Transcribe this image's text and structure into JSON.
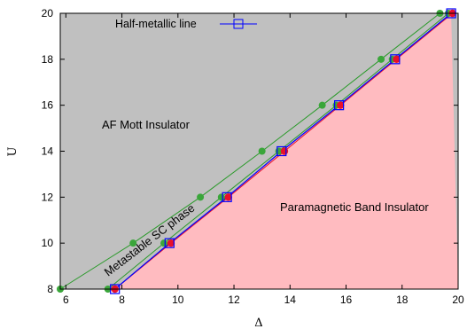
{
  "chart_data": {
    "type": "area",
    "xlabel": "Δ",
    "ylabel": "U",
    "xlim": [
      5.8,
      20
    ],
    "ylim": [
      8,
      20
    ],
    "xticks": [
      "6",
      "8",
      "10",
      "12",
      "14",
      "16",
      "18",
      "20"
    ],
    "yticks": [
      "8",
      "10",
      "12",
      "14",
      "16",
      "18",
      "20"
    ],
    "colors": {
      "af_region": "#c0c0c0",
      "pm_region": "#ffbbc0",
      "green_line": "#2a9a2a",
      "green_marker": "#3aa63a",
      "blue_line": "#0000ff",
      "red_marker": "#e8102a"
    },
    "annotations": {
      "af_mott": "AF Mott Insulator",
      "paramagnetic": "Paramagnetic Band Insulator",
      "metastable": "Metastable SC phase"
    },
    "legend": {
      "label": "Half-metallic line",
      "position": "top"
    },
    "series": [
      {
        "name": "Half-metallic line",
        "marker": "open-square",
        "x": [
          7.75,
          9.7,
          11.75,
          13.7,
          15.75,
          17.75,
          19.75
        ],
        "y": [
          8,
          10,
          12,
          14,
          16,
          18,
          20
        ]
      },
      {
        "marker": "red-circle",
        "x": [
          7.75,
          9.75,
          11.8,
          13.8,
          15.8,
          17.8,
          19.8
        ],
        "y": [
          8,
          10,
          12,
          14,
          16,
          18,
          20
        ]
      },
      {
        "marker": "green-dot",
        "x": [
          5.8,
          8.4,
          10.8,
          13.0,
          15.15,
          17.25,
          19.35
        ],
        "y": [
          8,
          10,
          12,
          14,
          16,
          18,
          20
        ]
      },
      {
        "marker": "green-dot",
        "x": [
          7.5,
          9.5,
          11.55,
          13.6,
          15.65,
          17.65,
          19.65
        ],
        "y": [
          8,
          10,
          12,
          14,
          16,
          18,
          20
        ]
      }
    ]
  }
}
